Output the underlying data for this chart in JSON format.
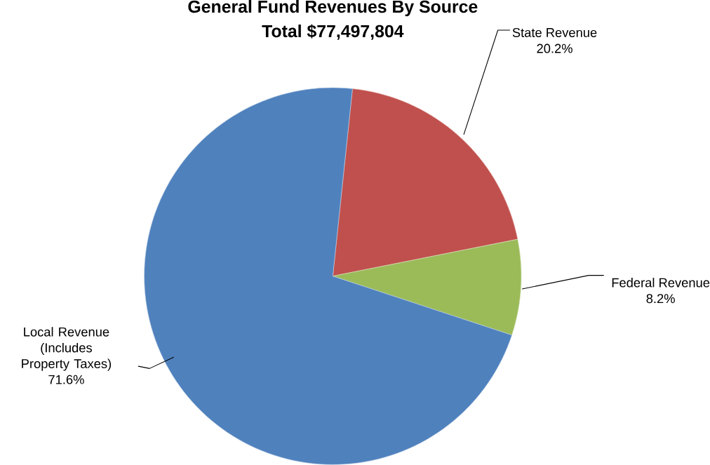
{
  "chart_data": {
    "type": "pie",
    "title": "General Fund Revenues By Source",
    "subtitle": "Total $77,497,804",
    "categories": [
      "State Revenue",
      "Federal Revenue",
      "Local Revenue (Includes Property Taxes)"
    ],
    "values": [
      20.2,
      8.2,
      71.6
    ],
    "value_labels": [
      "20.2%",
      "8.2%",
      "71.6%"
    ],
    "colors": [
      "#c0504d",
      "#9bbb59",
      "#4f81bd"
    ]
  }
}
